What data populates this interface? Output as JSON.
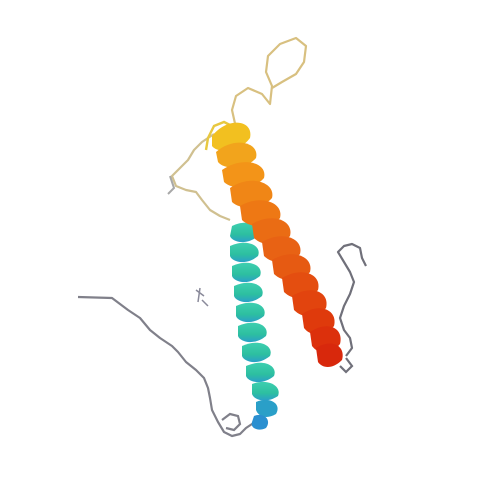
{
  "scene": {
    "background": "#ffffff",
    "coil_color": "#7f7f8a",
    "helix_colors": {
      "n_terminal": "#2ec4a6",
      "middle": "#f0a020",
      "c_terminal": "#e03010"
    }
  }
}
